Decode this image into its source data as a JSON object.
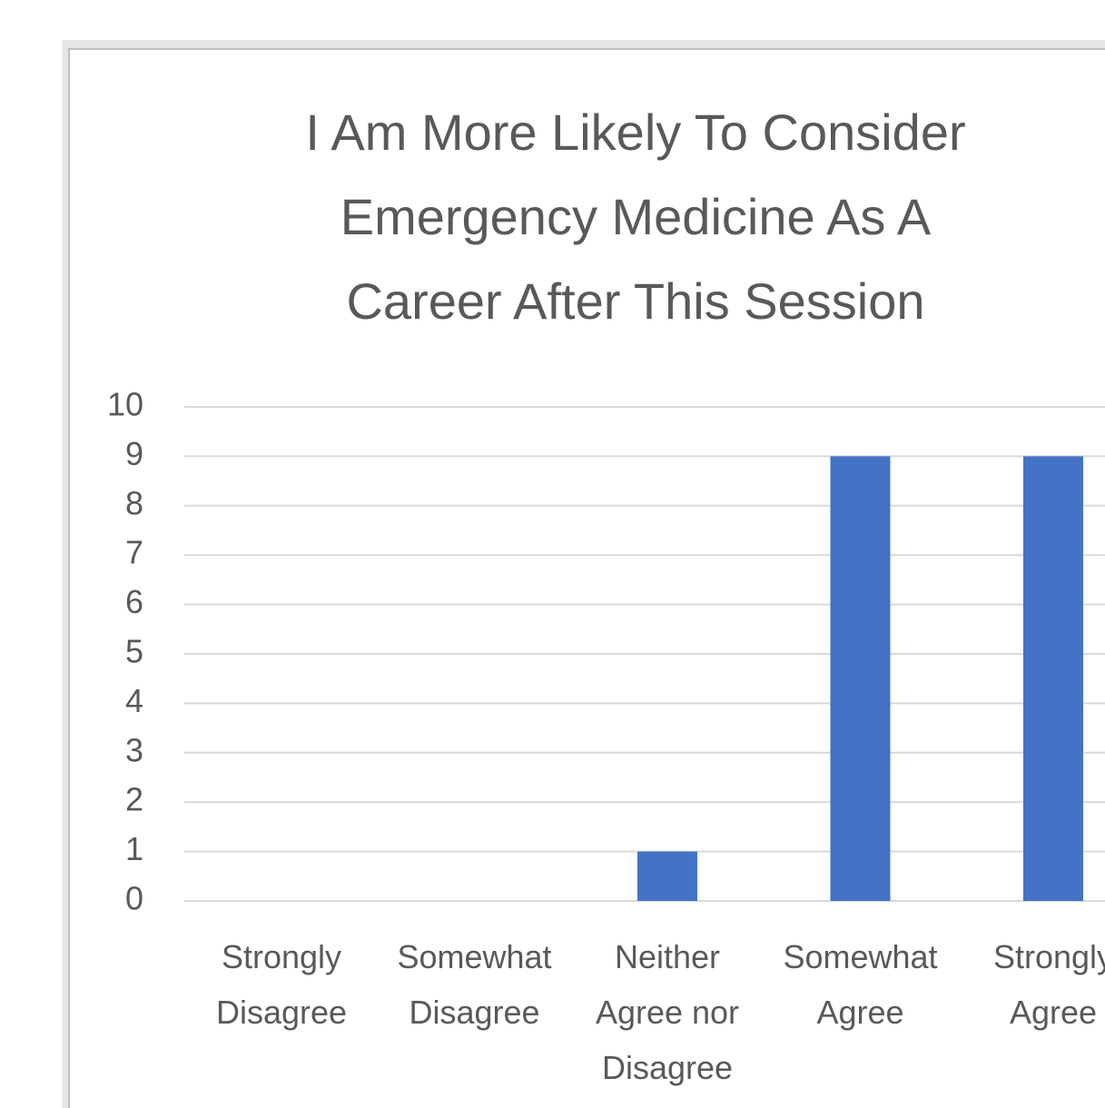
{
  "chart_data": {
    "type": "bar",
    "title": "I Am More Likely To Consider Emergency Medicine As A Career After This Session",
    "categories": [
      "Strongly Disagree",
      "Somewhat Disagree",
      "Neither Agree nor Disagree",
      "Somewhat Agree",
      "Strongly Agree"
    ],
    "values": [
      0,
      0,
      1,
      9,
      9
    ],
    "color": "#4472c4",
    "ylim": [
      0,
      10
    ],
    "yticks": [
      0,
      1,
      2,
      3,
      4,
      5,
      6,
      7,
      8,
      9,
      10
    ],
    "grid": true
  }
}
